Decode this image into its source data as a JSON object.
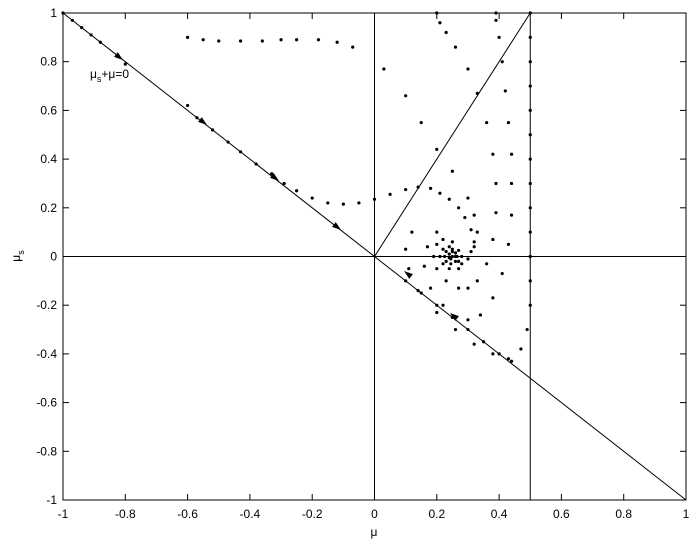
{
  "chart_data": {
    "type": "scatter",
    "xlabel": "μ",
    "ylabel_parts": [
      "μ",
      "s"
    ],
    "annotation_parts": [
      "μ",
      "s",
      "+μ=0"
    ],
    "xlim": [
      -1,
      1
    ],
    "ylim": [
      -1,
      1
    ],
    "xticks": [
      -1,
      -0.8,
      -0.6,
      -0.4,
      -0.2,
      0,
      0.2,
      0.4,
      0.6,
      0.8,
      1
    ],
    "yticks": [
      -1,
      -0.8,
      -0.6,
      -0.4,
      -0.2,
      0,
      0.2,
      0.4,
      0.6,
      0.8,
      1
    ],
    "grid": false,
    "lines": [
      {
        "x": [
          -1,
          1
        ],
        "values": [
          1,
          -1
        ]
      },
      {
        "x": [
          0,
          0.5
        ],
        "values": [
          0,
          1
        ]
      },
      {
        "x": [
          0,
          0
        ],
        "values": [
          -1,
          1
        ]
      },
      {
        "x": [
          0.5,
          0.5
        ],
        "values": [
          -1,
          1
        ]
      },
      {
        "x": [
          -1,
          1
        ],
        "values": [
          0,
          0
        ]
      }
    ],
    "line_color": "#000000",
    "series": [
      {
        "color": "#000000",
        "x": [
          -1,
          -0.97,
          -0.94,
          -0.91,
          -0.88,
          -0.8,
          -0.6,
          -0.57,
          -0.52,
          -0.47,
          -0.43,
          -0.38,
          -0.33,
          -0.29,
          -0.25,
          -0.2,
          -0.15,
          -0.1,
          -0.05,
          0,
          0.05,
          0.1,
          0.14,
          0.18,
          0.21,
          0.24,
          0.27,
          0.29,
          0.31,
          0.32,
          0.31,
          0.3,
          0.28,
          0.27,
          0.26
        ],
        "values": [
          1,
          0.97,
          0.94,
          0.91,
          0.88,
          0.79,
          0.62,
          0.57,
          0.52,
          0.47,
          0.43,
          0.38,
          0.34,
          0.3,
          0.27,
          0.24,
          0.22,
          0.215,
          0.22,
          0.235,
          0.255,
          0.275,
          0.285,
          0.28,
          0.26,
          0.235,
          0.2,
          0.16,
          0.11,
          0.06,
          0.02,
          -0.01,
          -0.03,
          -0.02,
          0
        ]
      },
      {
        "color": "#000000",
        "x": [
          -0.6,
          -0.55,
          -0.5,
          -0.43,
          -0.36,
          -0.3,
          -0.25,
          -0.18,
          -0.12,
          -0.07,
          0.03,
          0.1,
          0.15,
          0.2,
          0.25,
          0.3,
          0.32,
          0.33,
          0.32,
          0.3,
          0.27,
          0.24,
          0.22,
          0.21,
          0.22,
          0.24
        ],
        "values": [
          0.9,
          0.89,
          0.885,
          0.885,
          0.885,
          0.89,
          0.89,
          0.89,
          0.88,
          0.86,
          0.77,
          0.66,
          0.55,
          0.44,
          0.35,
          0.24,
          0.17,
          0.1,
          0.04,
          -0.01,
          -0.05,
          -0.05,
          -0.03,
          0,
          0.03,
          0.04
        ]
      },
      {
        "color": "#000000",
        "x": [
          0.2,
          0.21,
          0.23,
          0.26,
          0.3,
          0.33,
          0.36,
          0.38,
          0.39,
          0.39,
          0.38,
          0.36,
          0.33,
          0.3,
          0.27,
          0.23,
          0.2,
          0.19,
          0.2,
          0.22,
          0.25
        ],
        "values": [
          1,
          0.96,
          0.92,
          0.86,
          0.77,
          0.67,
          0.55,
          0.42,
          0.3,
          0.18,
          0.07,
          -0.03,
          -0.1,
          -0.13,
          -0.13,
          -0.1,
          -0.05,
          0,
          0.05,
          0.07,
          0.06
        ]
      },
      {
        "color": "#000000",
        "x": [
          0.39,
          0.39,
          0.4,
          0.41,
          0.42,
          0.43,
          0.44,
          0.44,
          0.44,
          0.43,
          0.41,
          0.38,
          0.34,
          0.3,
          0.26,
          0.22,
          0.18,
          0.16,
          0.17,
          0.2
        ],
        "values": [
          1,
          0.97,
          0.9,
          0.8,
          0.68,
          0.55,
          0.42,
          0.3,
          0.17,
          0.05,
          -0.07,
          -0.17,
          -0.24,
          -0.26,
          -0.25,
          -0.2,
          -0.13,
          -0.04,
          0.04,
          0.1
        ]
      },
      {
        "color": "#000000",
        "x": [
          0.5,
          0.5,
          0.5,
          0.5,
          0.5,
          0.5,
          0.5,
          0.5,
          0.5,
          0.5,
          0.5,
          0.5,
          0.5,
          0.49,
          0.47,
          0.43,
          0.38,
          0.32,
          0.26,
          0.2,
          0.14,
          0.11,
          0.1,
          0.12
        ],
        "values": [
          1,
          0.9,
          0.8,
          0.7,
          0.6,
          0.5,
          0.4,
          0.3,
          0.2,
          0.1,
          0,
          -0.1,
          -0.2,
          -0.3,
          -0.38,
          -0.42,
          -0.4,
          -0.36,
          -0.3,
          -0.23,
          -0.14,
          -0.05,
          0.03,
          0.1
        ]
      },
      {
        "color": "#000000",
        "x": [
          0.1,
          0.15,
          0.2,
          0.25,
          0.3,
          0.35,
          0.4,
          0.44
        ],
        "values": [
          -0.1,
          -0.15,
          -0.2,
          -0.25,
          -0.3,
          -0.35,
          -0.4,
          -0.43
        ]
      },
      {
        "color": "#000000",
        "x": [
          0.28,
          0.27,
          0.25,
          0.23,
          0.225,
          0.23,
          0.245,
          0.26,
          0.265,
          0.26,
          0.25,
          0.24,
          0.24,
          0.245,
          0.25
        ],
        "values": [
          0,
          0.025,
          0.03,
          0.02,
          0,
          -0.02,
          -0.03,
          -0.02,
          0,
          0.015,
          0.02,
          0.01,
          -0.005,
          -0.01,
          0
        ]
      }
    ]
  }
}
